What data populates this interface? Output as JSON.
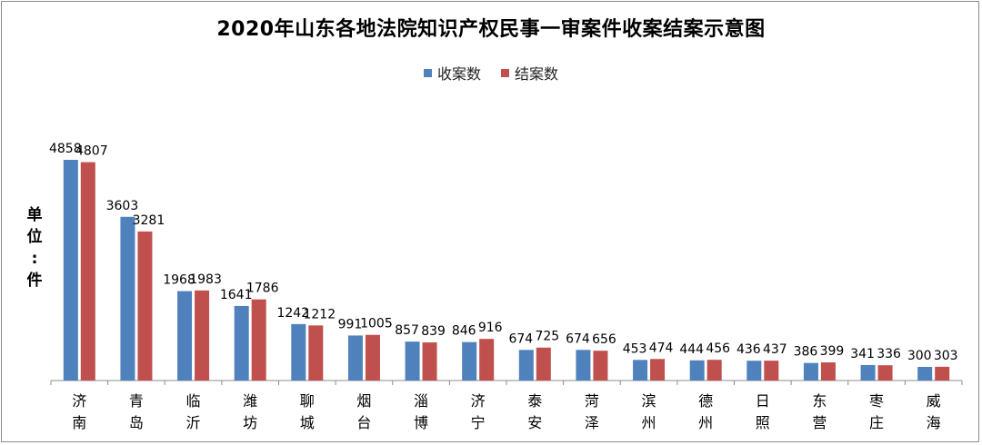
{
  "chart_data": {
    "type": "bar",
    "title": "2020年山东各地法院知识产权民事一审案件收案结案示意图",
    "ylabel_chars": [
      "单",
      "位",
      ":",
      "件"
    ],
    "categories": [
      [
        "济",
        "南"
      ],
      [
        "青",
        "岛"
      ],
      [
        "临",
        "沂"
      ],
      [
        "潍",
        "坊"
      ],
      [
        "聊",
        "城"
      ],
      [
        "烟",
        "台"
      ],
      [
        "淄",
        "博"
      ],
      [
        "济",
        "宁"
      ],
      [
        "泰",
        "安"
      ],
      [
        "菏",
        "泽"
      ],
      [
        "滨",
        "州"
      ],
      [
        "德",
        "州"
      ],
      [
        "日",
        "照"
      ],
      [
        "东",
        "营"
      ],
      [
        "枣",
        "庄"
      ],
      [
        "威",
        "海"
      ]
    ],
    "series": [
      {
        "name": "收案数",
        "color": "#4f81bd",
        "values": [
          4858,
          3603,
          1968,
          1641,
          1242,
          991,
          857,
          846,
          674,
          674,
          453,
          444,
          436,
          386,
          341,
          300
        ]
      },
      {
        "name": "结案数",
        "color": "#c0504d",
        "values": [
          4807,
          3281,
          1983,
          1786,
          1212,
          1005,
          839,
          916,
          725,
          656,
          474,
          456,
          437,
          399,
          336,
          303
        ]
      }
    ],
    "ylim": [
      0,
      5000
    ],
    "grid": false,
    "legend_position": "top-center"
  }
}
